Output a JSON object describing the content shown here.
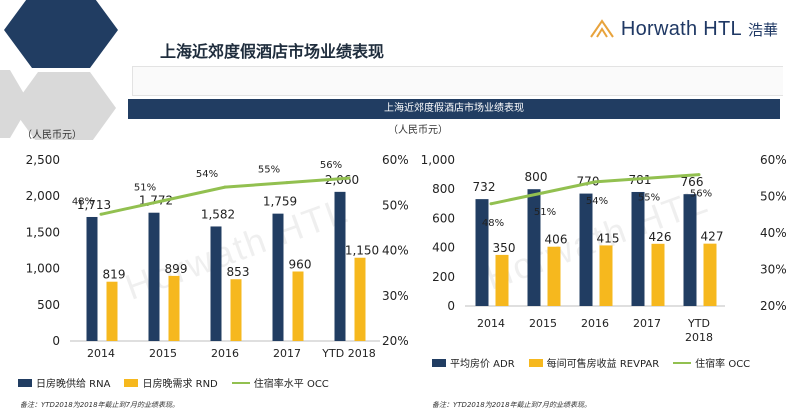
{
  "header": {
    "title": "上海近郊度假酒店市场业绩表现",
    "logo_text": "Horwath HTL",
    "logo_cn": "浩華",
    "banner": "上海近郊度假酒店市场业绩表现"
  },
  "units": {
    "left": "（人民币元）",
    "right": "（人民币元）"
  },
  "notes": {
    "left": "备注：YTD2018为2018年截止到7月的业绩表现。",
    "right": "备注：YTD2018为2018年截止到7月的业绩表现。"
  },
  "colors": {
    "navy": "#213d62",
    "gold": "#f6b81e",
    "green": "#92c050"
  },
  "watermark": "Horwath HTL",
  "chart_data": [
    {
      "type": "bar",
      "categories": [
        "2014",
        "2015",
        "2016",
        "2017",
        "YTD 2018"
      ],
      "series": [
        {
          "name": "日房晚供给 RNA",
          "values": [
            1713,
            1772,
            1582,
            1759,
            2060
          ],
          "labels": [
            "1,713",
            "1,772",
            "1,582",
            "1,759",
            "2,060"
          ]
        },
        {
          "name": "日房晚需求 RND",
          "values": [
            819,
            899,
            853,
            960,
            1150
          ],
          "labels": [
            "819",
            "899",
            "853",
            "960",
            "1,150"
          ]
        },
        {
          "name": "住宿率水平 OCC",
          "axis": "right",
          "line": true,
          "values": [
            48,
            51,
            54,
            55,
            56
          ],
          "labels": [
            "48%",
            "51%",
            "54%",
            "55%",
            "56%"
          ]
        }
      ],
      "ylim": [
        0,
        2500
      ],
      "yticks": [
        "0",
        "500",
        "1,000",
        "1,500",
        "2,000",
        "2,500"
      ],
      "y2lim": [
        20,
        60
      ],
      "y2ticks": [
        "20%",
        "30%",
        "40%",
        "50%",
        "60%"
      ],
      "legend": "bottom"
    },
    {
      "type": "bar",
      "categories": [
        "2014",
        "2015",
        "2016",
        "2017",
        "YTD 2018"
      ],
      "category_labels": [
        [
          "2014"
        ],
        [
          "2015"
        ],
        [
          "2016"
        ],
        [
          "2017"
        ],
        [
          "YTD",
          "2018"
        ]
      ],
      "series": [
        {
          "name": "平均房价 ADR",
          "values": [
            732,
            800,
            770,
            781,
            766
          ],
          "labels": [
            "732",
            "800",
            "770",
            "781",
            "766"
          ]
        },
        {
          "name": "每间可售房收益 REVPAR",
          "values": [
            350,
            406,
            415,
            426,
            427
          ],
          "labels": [
            "350",
            "406",
            "415",
            "426",
            "427"
          ]
        },
        {
          "name": "住宿率 OCC",
          "axis": "right",
          "line": true,
          "values": [
            48,
            51,
            54,
            55,
            56
          ],
          "labels": [
            "48%",
            "51%",
            "54%",
            "55%",
            "56%"
          ]
        }
      ],
      "ylim": [
        0,
        1000
      ],
      "yticks": [
        "0",
        "200",
        "400",
        "600",
        "800",
        "1,000"
      ],
      "y2lim": [
        20,
        60
      ],
      "y2ticks": [
        "20%",
        "30%",
        "40%",
        "50%",
        "60%"
      ],
      "legend": "bottom"
    }
  ]
}
